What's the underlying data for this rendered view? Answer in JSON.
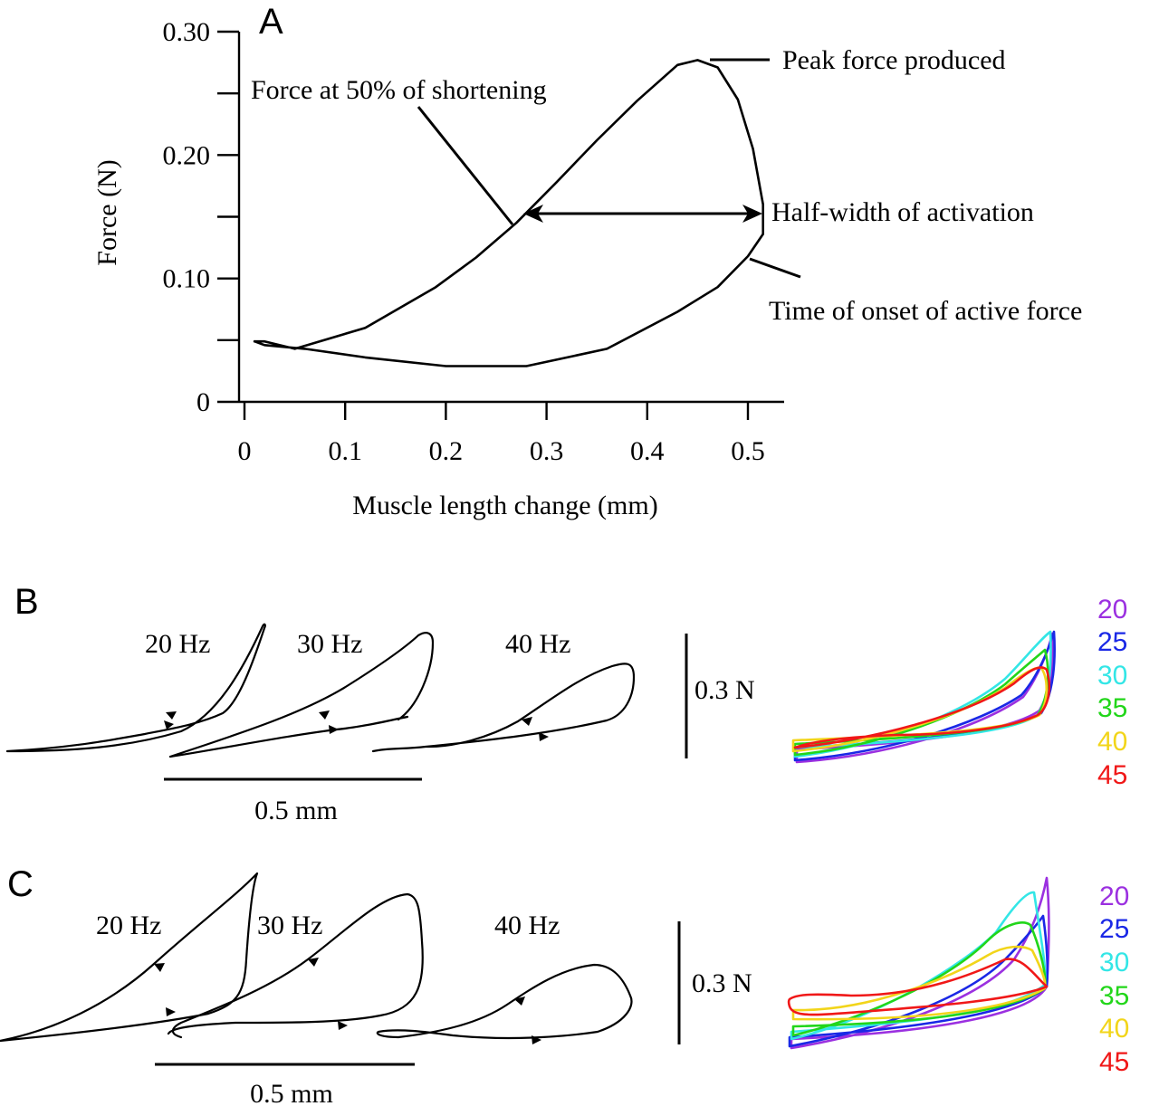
{
  "panels": {
    "A": "A",
    "B": "B",
    "C": "C"
  },
  "chart_data": [
    {
      "panel": "A",
      "type": "line",
      "xlabel": "Muscle length change (mm)",
      "ylabel": "Force (N)",
      "xlim": [
        0,
        0.54
      ],
      "ylim": [
        0,
        0.3
      ],
      "x_ticks": [
        0,
        0.1,
        0.2,
        0.3,
        0.4,
        0.5
      ],
      "x_tick_labels": [
        "0",
        "0.1",
        "0.2",
        "0.3",
        "0.4",
        "0.5"
      ],
      "y_ticks": [
        0,
        0.05,
        0.1,
        0.15,
        0.2,
        0.25,
        0.3
      ],
      "y_tick_labels": [
        "0",
        "",
        "0.10",
        "",
        "0.20",
        "",
        "0.30"
      ],
      "series": [
        {
          "x": [
            0.01,
            0.02,
            0.05,
            0.12,
            0.19,
            0.23,
            0.27,
            0.31,
            0.35,
            0.39,
            0.43,
            0.45,
            0.47,
            0.49,
            0.505,
            0.515,
            0.515,
            0.5,
            0.47,
            0.43,
            0.36,
            0.28,
            0.2,
            0.12,
            0.06,
            0.02,
            0.01
          ],
          "y": [
            0.049,
            0.049,
            0.043,
            0.06,
            0.093,
            0.117,
            0.145,
            0.178,
            0.212,
            0.244,
            0.273,
            0.277,
            0.271,
            0.245,
            0.205,
            0.16,
            0.136,
            0.118,
            0.093,
            0.073,
            0.043,
            0.029,
            0.029,
            0.036,
            0.043,
            0.046,
            0.049
          ]
        }
      ],
      "annotations": [
        "Peak force produced",
        "Force at 50% of shortening",
        "Half-width of activation",
        "Time of onset of active force"
      ]
    },
    {
      "panel": "B",
      "type": "line",
      "series": [
        {
          "name": "20 Hz",
          "x": [
            0.0,
            0.1,
            0.2,
            0.26,
            0.305,
            0.31,
            0.3,
            0.275,
            0.25,
            0.21,
            0.15,
            0.08,
            0.0
          ],
          "y": [
            0.0,
            0.006,
            0.025,
            0.05,
            0.13,
            0.2,
            0.215,
            0.17,
            0.13,
            0.07,
            0.03,
            0.01,
            0.0
          ]
        },
        {
          "name": "30 Hz",
          "x": [
            0.0,
            0.1,
            0.2,
            0.26,
            0.285,
            0.29,
            0.28,
            0.22,
            0.12,
            0.04,
            0.0
          ],
          "y": [
            0.0,
            0.012,
            0.03,
            0.07,
            0.12,
            0.16,
            0.18,
            0.13,
            0.06,
            0.02,
            0.0
          ]
        },
        {
          "name": "40 Hz",
          "x": [
            0.0,
            0.1,
            0.2,
            0.26,
            0.285,
            0.29,
            0.27,
            0.2,
            0.12,
            0.04,
            0.0
          ],
          "y": [
            0.0,
            0.008,
            0.03,
            0.06,
            0.08,
            0.11,
            0.135,
            0.09,
            0.04,
            0.006,
            0.0
          ]
        }
      ],
      "labels": [
        "20 Hz",
        "30 Hz",
        "40 Hz"
      ],
      "scale_x": "0.5 mm",
      "scale_y": "0.3 N",
      "legend": [
        "20",
        "25",
        "30",
        "35",
        "40",
        "45"
      ]
    },
    {
      "panel": "C",
      "type": "line",
      "series": [
        {
          "name": "20 Hz",
          "x": [
            0.0,
            0.1,
            0.2,
            0.26,
            0.27,
            0.29,
            0.24,
            0.16,
            0.08,
            0.0
          ],
          "y": [
            0.0,
            0.012,
            0.05,
            0.1,
            0.17,
            0.29,
            0.2,
            0.11,
            0.04,
            0.0
          ]
        },
        {
          "name": "30 Hz",
          "x": [
            0.0,
            0.08,
            0.2,
            0.27,
            0.285,
            0.28,
            0.24,
            0.15,
            0.05,
            0.0
          ],
          "y": [
            0.0,
            0.0,
            0.01,
            0.06,
            0.15,
            0.24,
            0.21,
            0.12,
            0.04,
            0.0
          ]
        },
        {
          "name": "40 Hz",
          "x": [
            0.0,
            0.08,
            0.2,
            0.28,
            0.26,
            0.2,
            0.14,
            0.07,
            0.0
          ],
          "y": [
            0.0,
            -0.01,
            -0.005,
            0.04,
            0.11,
            0.09,
            0.05,
            0.0,
            0.0
          ]
        }
      ],
      "labels": [
        "20 Hz",
        "30 Hz",
        "40 Hz"
      ],
      "scale_x": "0.5 mm",
      "scale_y": "0.3 N",
      "legend": [
        "20",
        "25",
        "30",
        "35",
        "40",
        "45"
      ]
    }
  ],
  "colors": {
    "20": "#9b30e0",
    "25": "#1a28e6",
    "30": "#33e6e6",
    "35": "#22d61a",
    "40": "#f2d51a",
    "45": "#f01818"
  }
}
